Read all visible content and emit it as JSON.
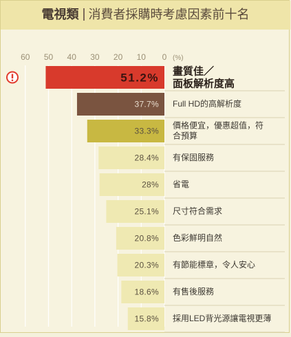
{
  "header": {
    "title_part1": "電視類",
    "title_part2": "消費者採購時考慮因素前十名"
  },
  "colors": {
    "background": "#f7f3df",
    "header_bg": "#efe5a9",
    "bar_top1": "#d83a2c",
    "bar_top2": "#7a5440",
    "bar_top3": "#c8b842",
    "bar_rest": "#efe9b2",
    "badge": "#e23b2e",
    "gridline": "#ffffff"
  },
  "chart_data": {
    "type": "bar",
    "orientation": "horizontal",
    "direction": "right-to-left",
    "unit_label": "(%)",
    "xlim": [
      0,
      60
    ],
    "ticks": [
      "60",
      "50",
      "40",
      "30",
      "20",
      "10",
      "0"
    ],
    "categories": [
      "畫質佳／面板解析度高",
      "Full HD的高解析度",
      "價格便宜，優惠超值，符合預算",
      "有保固服務",
      "省電",
      "尺寸符合需求",
      "色彩鮮明自然",
      "有節能標章，令人安心",
      "有售後服務",
      "採用LED背光源讓電視更薄"
    ],
    "values": [
      51.2,
      37.7,
      33.3,
      28.4,
      28,
      25.1,
      20.8,
      20.3,
      18.6,
      15.8
    ],
    "value_labels": [
      "51.2%",
      "37.7%",
      "33.3%",
      "28.4%",
      "28%",
      "25.1%",
      "20.8%",
      "20.3%",
      "18.6%",
      "15.8%"
    ],
    "label_lines": [
      [
        "畫質佳／",
        "面板解析度高"
      ],
      [
        "Full HD的高解析度"
      ],
      [
        "價格便宜，優惠超值，符",
        "合預算"
      ],
      [
        "有保固服務"
      ],
      [
        "省電"
      ],
      [
        "尺寸符合需求"
      ],
      [
        "色彩鮮明自然"
      ],
      [
        "有節能標章，令人安心"
      ],
      [
        "有售後服務"
      ],
      [
        "採用LED背光源讓電視更薄"
      ]
    ],
    "highlight_icon": "exclamation-circle-icon",
    "grid": true
  }
}
